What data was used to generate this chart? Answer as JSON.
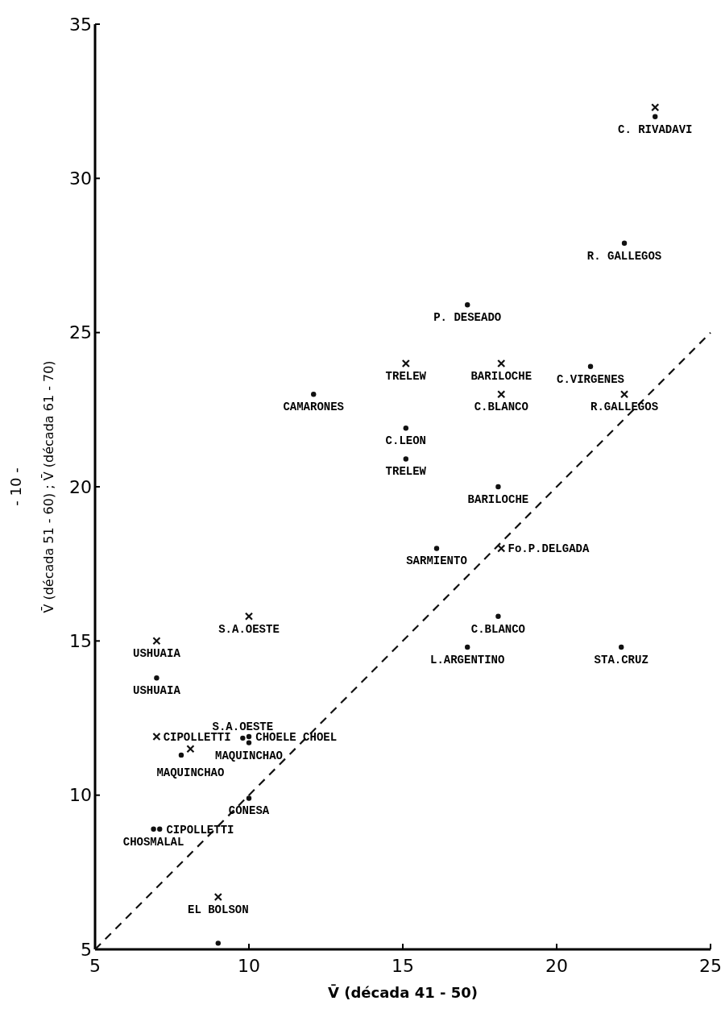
{
  "chart_data": {
    "type": "scatter",
    "xlabel": "V̄  (década 41 - 50)",
    "ylabel": "V̄ (década 51 - 60)  ;  V̄ (década 61 - 70)",
    "xlim": [
      5,
      25
    ],
    "xticks": [
      5,
      10,
      15,
      20,
      25
    ],
    "ylim": [
      5,
      35
    ],
    "yticks": [
      5,
      10,
      15,
      20,
      25,
      30,
      35
    ],
    "grid": false,
    "series": [
      {
        "marker": "cross",
        "color": "#111111",
        "x": [
          23.2,
          15.1,
          18.2,
          18.2,
          22.2,
          18.2,
          10.0,
          7.0,
          7.0,
          8.1,
          9.0
        ],
        "values": [
          32.3,
          24.0,
          24.0,
          23.0,
          23.0,
          18.0,
          15.8,
          15.0,
          11.9,
          11.5,
          6.7
        ]
      },
      {
        "marker": "circle",
        "color": "#111111",
        "x": [
          23.2,
          22.2,
          17.1,
          21.1,
          12.1,
          15.1,
          15.1,
          18.1,
          16.1,
          18.1,
          17.1,
          22.1,
          7.0,
          7.8,
          10.0,
          9.8,
          10.0,
          10.0,
          6.9,
          7.1,
          9.0
        ],
        "values": [
          32.0,
          27.9,
          25.9,
          23.9,
          23.0,
          21.9,
          20.9,
          20.0,
          18.0,
          15.8,
          14.8,
          14.8,
          13.8,
          11.3,
          11.9,
          11.85,
          11.7,
          9.9,
          8.9,
          8.9,
          5.2
        ]
      },
      {
        "type": "line",
        "line_style": "dashed",
        "marker": "none",
        "color": "#111111",
        "x": [
          5,
          25
        ],
        "values": [
          5,
          25
        ]
      }
    ],
    "annotations": [
      {
        "text": "C. RIVADAVI",
        "x": 23.2,
        "y": 32.0
      },
      {
        "text": "R. GALLEGOS",
        "x": 22.2,
        "y": 27.9
      },
      {
        "text": "P. DESEADO",
        "x": 17.1,
        "y": 25.9
      },
      {
        "text": "TRELEW",
        "x": 15.1,
        "y": 24.0
      },
      {
        "text": "BARILOCHE",
        "x": 18.2,
        "y": 24.0
      },
      {
        "text": "C.VIRGENES",
        "x": 21.1,
        "y": 23.9
      },
      {
        "text": "C.BLANCO",
        "x": 18.2,
        "y": 23.0
      },
      {
        "text": "R.GALLEGOS",
        "x": 22.2,
        "y": 23.0
      },
      {
        "text": "CAMARONES",
        "x": 12.1,
        "y": 23.0
      },
      {
        "text": "C.LEON",
        "x": 15.1,
        "y": 21.9
      },
      {
        "text": "TRELEW",
        "x": 15.1,
        "y": 20.9
      },
      {
        "text": "BARILOCHE",
        "x": 18.1,
        "y": 20.0
      },
      {
        "text": "SARMIENTO",
        "x": 16.1,
        "y": 18.0
      },
      {
        "text": "Fo.P.DELGADA",
        "x": 18.2,
        "y": 18.0
      },
      {
        "text": "S.A.OESTE",
        "x": 10.0,
        "y": 15.8
      },
      {
        "text": "C.BLANCO",
        "x": 18.1,
        "y": 15.8
      },
      {
        "text": "USHUAIA",
        "x": 7.0,
        "y": 15.0
      },
      {
        "text": "L.ARGENTINO",
        "x": 17.1,
        "y": 14.8
      },
      {
        "text": "STA.CRUZ",
        "x": 22.1,
        "y": 14.8
      },
      {
        "text": "USHUAIA",
        "x": 7.0,
        "y": 13.8
      },
      {
        "text": "CHOELE CHOEL",
        "x": 10.0,
        "y": 11.9
      },
      {
        "text": "S.A.OESTE",
        "x": 9.8,
        "y": 11.85
      },
      {
        "text": "MAQUINCHAO",
        "x": 10.0,
        "y": 11.7
      },
      {
        "text": "CIPOLLETTI",
        "x": 7.0,
        "y": 11.9
      },
      {
        "text": "MAQUINCHAO",
        "x": 8.1,
        "y": 11.5
      },
      {
        "text": "CONESA",
        "x": 10.0,
        "y": 9.9
      },
      {
        "text": "CHOSMALAL",
        "x": 6.9,
        "y": 8.9
      },
      {
        "text": "CIPOLLETTI",
        "x": 7.1,
        "y": 8.9
      },
      {
        "text": "EL BOLSON",
        "x": 9.0,
        "y": 6.7
      },
      "- 10 -"
    ]
  }
}
